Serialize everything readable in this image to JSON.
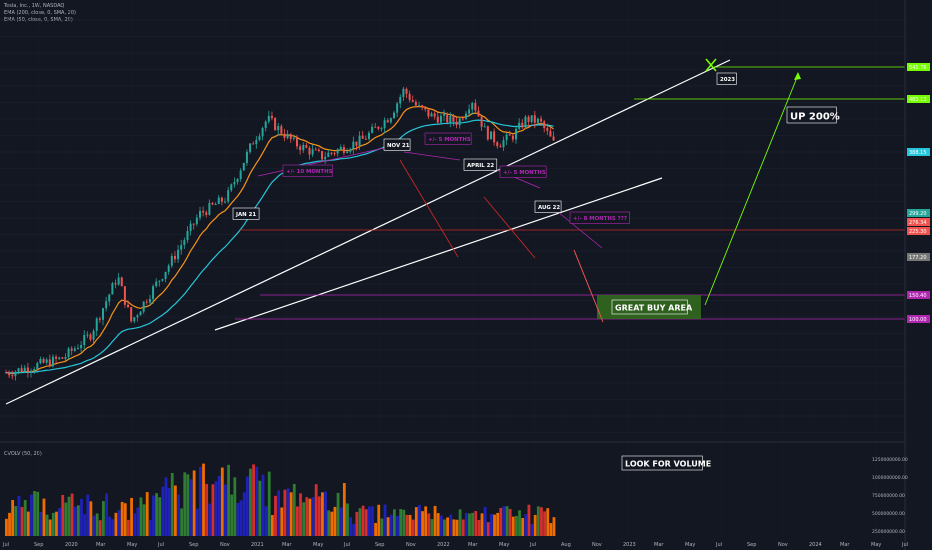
{
  "header": {
    "symbol_line": "Tesla, Inc., 1W, NASDAQ",
    "indicator_1": "EMA (200, close, 0, SMA, 20)",
    "indicator_2": "EMA (50, close, 0, SMA, 20)",
    "volume_panel_label": "CVOLV (50, 20)"
  },
  "colors": {
    "background": "#131722",
    "bull": "#ef5350",
    "bear": "#26a69a",
    "channel": "#ffffff",
    "ema_fast": "#f7931a",
    "ema_slow": "#26c6da",
    "resistance": "#c62828",
    "support": "#b027b0",
    "target": "#76ff03",
    "buy_zone": "#33691e",
    "vol_green": "#2e7d32",
    "vol_blue": "#1e22b8",
    "vol_red": "#d32f2f",
    "vol_orange": "#ef6c00"
  },
  "chart_data": {
    "type": "candlestick",
    "x_axis_labels": [
      "Jul",
      "Sep",
      "2020",
      "Mar",
      "May",
      "Jul",
      "Sep",
      "Nov",
      "2021",
      "Mar",
      "May",
      "Jul",
      "Sep",
      "Nov",
      "2022",
      "Mar",
      "May",
      "Jul",
      "Aug",
      "Nov",
      "2023",
      "Mar",
      "May",
      "Jul",
      "Sep",
      "Nov",
      "2024",
      "Mar",
      "May",
      "Jul"
    ],
    "price_axis_scale": "log",
    "annotations": [
      {
        "text": "JAN 21",
        "type": "label"
      },
      {
        "text": "NOV 21",
        "type": "label"
      },
      {
        "text": "APRIL 22",
        "type": "label"
      },
      {
        "text": "AUG 22",
        "type": "label"
      },
      {
        "text": "+/- 10 MONTHS",
        "type": "label"
      },
      {
        "text": "+/- 5 MONTHS",
        "type": "label"
      },
      {
        "text": "+/- 5 MONTHS",
        "type": "label"
      },
      {
        "text": "+/- 8 MONTHS ???",
        "type": "label"
      },
      {
        "text": "2023",
        "type": "label"
      },
      {
        "text": "UP 200%",
        "type": "label"
      },
      {
        "text": "GREAT BUY AREA",
        "type": "label"
      },
      {
        "text": "LOOK FOR VOLUME",
        "type": "label"
      }
    ],
    "trend_waypoints": [
      {
        "date": "2019-06",
        "price": 17
      },
      {
        "date": "2019-10",
        "price": 20
      },
      {
        "date": "2019-12",
        "price": 26
      },
      {
        "date": "2020-02",
        "price": 50
      },
      {
        "date": "2020-03",
        "price": 30
      },
      {
        "date": "2020-06",
        "price": 60
      },
      {
        "date": "2020-08",
        "price": 100
      },
      {
        "date": "2020-10",
        "price": 120
      },
      {
        "date": "2020-12",
        "price": 230
      },
      {
        "date": "2021-01",
        "price": 290
      },
      {
        "date": "2021-03",
        "price": 220
      },
      {
        "date": "2021-05",
        "price": 190
      },
      {
        "date": "2021-08",
        "price": 230
      },
      {
        "date": "2021-10",
        "price": 300
      },
      {
        "date": "2021-11",
        "price": 400
      },
      {
        "date": "2021-12",
        "price": 330
      },
      {
        "date": "2022-01",
        "price": 300
      },
      {
        "date": "2022-03",
        "price": 280
      },
      {
        "date": "2022-04",
        "price": 360
      },
      {
        "date": "2022-05",
        "price": 250
      },
      {
        "date": "2022-06",
        "price": 220
      },
      {
        "date": "2022-07",
        "price": 240
      },
      {
        "date": "2022-08",
        "price": 290
      },
      {
        "date": "2022-09",
        "price": 280
      },
      {
        "date": "2022-10",
        "price": 220
      }
    ],
    "price_tags": [
      "541.76",
      "483.13",
      "388.15",
      "299.20",
      "276.34",
      "225.30",
      "177.20",
      "150.40",
      "100.00"
    ],
    "volume": {
      "scale_labels": [
        "1250000000.00",
        "1000000000.00",
        "750000000.00",
        "500000000.00",
        "250000000.00"
      ]
    }
  }
}
